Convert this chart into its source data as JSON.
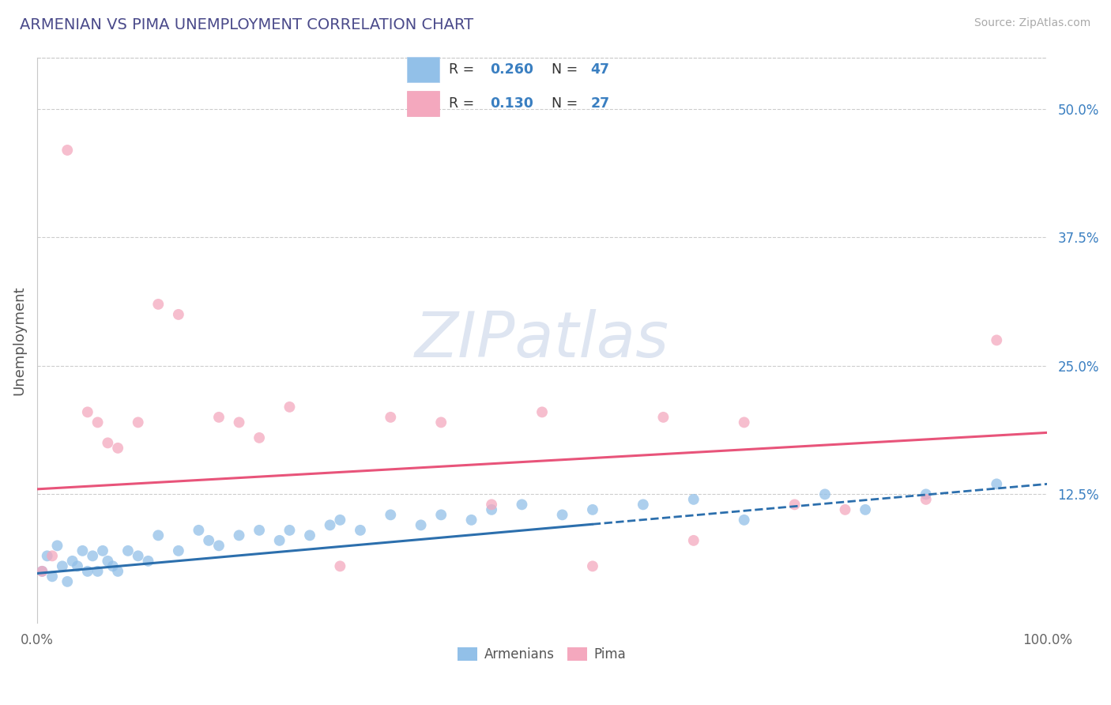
{
  "title": "ARMENIAN VS PIMA UNEMPLOYMENT CORRELATION CHART",
  "source": "Source: ZipAtlas.com",
  "ylabel": "Unemployment",
  "watermark": "ZIPatlas",
  "xlim": [
    0,
    100
  ],
  "ylim": [
    0,
    55
  ],
  "yticks": [
    0,
    12.5,
    25.0,
    37.5,
    50.0
  ],
  "xtick_labels": [
    "0.0%",
    "100.0%"
  ],
  "ytick_labels": [
    "",
    "12.5%",
    "25.0%",
    "37.5%",
    "50.0%"
  ],
  "armenian_R": 0.26,
  "armenian_N": 47,
  "pima_R": 0.13,
  "pima_N": 27,
  "armenian_color": "#92c0e8",
  "pima_color": "#f4a8be",
  "armenian_line_color": "#2c6fad",
  "pima_line_color": "#e8547a",
  "background_color": "#ffffff",
  "grid_color": "#c8c8c8",
  "title_color": "#4a4a8a",
  "source_color": "#aaaaaa",
  "value_color": "#3a7fc1",
  "label_color": "#333333",
  "armenian_x": [
    0.5,
    1.0,
    1.5,
    2.0,
    2.5,
    3.0,
    3.5,
    4.0,
    4.5,
    5.0,
    5.5,
    6.0,
    6.5,
    7.0,
    7.5,
    8.0,
    9.0,
    10.0,
    11.0,
    12.0,
    14.0,
    16.0,
    17.0,
    18.0,
    20.0,
    22.0,
    24.0,
    25.0,
    27.0,
    29.0,
    30.0,
    32.0,
    35.0,
    38.0,
    40.0,
    43.0,
    45.0,
    48.0,
    52.0,
    55.0,
    60.0,
    65.0,
    70.0,
    78.0,
    82.0,
    88.0,
    95.0
  ],
  "armenian_y": [
    5.0,
    6.5,
    4.5,
    7.5,
    5.5,
    4.0,
    6.0,
    5.5,
    7.0,
    5.0,
    6.5,
    5.0,
    7.0,
    6.0,
    5.5,
    5.0,
    7.0,
    6.5,
    6.0,
    8.5,
    7.0,
    9.0,
    8.0,
    7.5,
    8.5,
    9.0,
    8.0,
    9.0,
    8.5,
    9.5,
    10.0,
    9.0,
    10.5,
    9.5,
    10.5,
    10.0,
    11.0,
    11.5,
    10.5,
    11.0,
    11.5,
    12.0,
    10.0,
    12.5,
    11.0,
    12.5,
    13.5
  ],
  "pima_x": [
    0.5,
    1.5,
    3.0,
    5.0,
    6.0,
    7.0,
    8.0,
    10.0,
    12.0,
    14.0,
    18.0,
    20.0,
    22.0,
    25.0,
    30.0,
    35.0,
    40.0,
    45.0,
    50.0,
    55.0,
    62.0,
    65.0,
    70.0,
    75.0,
    80.0,
    88.0,
    95.0
  ],
  "pima_y": [
    5.0,
    6.5,
    46.0,
    20.5,
    19.5,
    17.5,
    17.0,
    19.5,
    31.0,
    30.0,
    20.0,
    19.5,
    18.0,
    21.0,
    5.5,
    20.0,
    19.5,
    11.5,
    20.5,
    5.5,
    20.0,
    8.0,
    19.5,
    11.5,
    11.0,
    12.0,
    27.5
  ],
  "armenian_solid_end": 55.0,
  "armenian_trend_x0": 0,
  "armenian_trend_y0": 4.8,
  "armenian_trend_x1": 100,
  "armenian_trend_y1": 13.5,
  "pima_trend_x0": 0,
  "pima_trend_y0": 13.0,
  "pima_trend_x1": 100,
  "pima_trend_y1": 18.5
}
